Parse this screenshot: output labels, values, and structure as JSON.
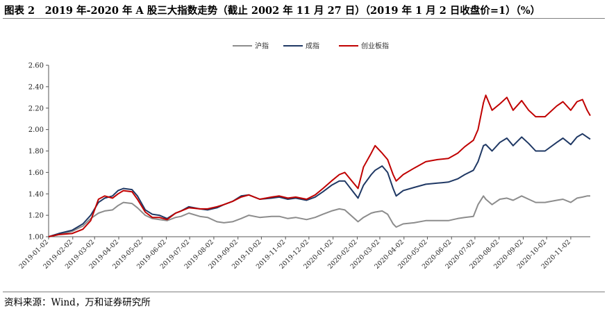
{
  "header": {
    "title": "图表 2　2019 年-2020 年 A 股三大指数走势（截止 2002 年 11 月 27 日）（2019 年 1 月 2 日收盘价=1）（%）"
  },
  "footer": {
    "source": "资料来源：Wind，万和证券研究所"
  },
  "chart_data": {
    "type": "line",
    "title": "图表 2　2019 年-2020 年 A 股三大指数走势（截止 2002 年 11 月 27 日）（2019 年 1 月 2 日收盘价=1）（%）",
    "legend_position": "top-center",
    "grid": false,
    "ylim": [
      1.0,
      2.6
    ],
    "y_ticks": [
      "1.00",
      "1.20",
      "1.40",
      "1.60",
      "1.80",
      "2.00",
      "2.20",
      "2.40",
      "2.60"
    ],
    "x_ticks": [
      "2019-01-02",
      "2019-02-02",
      "2019-03-02",
      "2019-04-02",
      "2019-05-02",
      "2019-06-02",
      "2019-07-02",
      "2019-08-02",
      "2019-09-02",
      "2019-10-02",
      "2019-11-02",
      "2019-12-02",
      "2020-01-02",
      "2020-02-02",
      "2020-03-02",
      "2020-04-02",
      "2020-05-02",
      "2020-06-02",
      "2020-07-02",
      "2020-08-02",
      "2020-09-02",
      "2020-10-02",
      "2020-11-02"
    ],
    "x": [
      "2019-01-02",
      "2019-01-15",
      "2019-02-01",
      "2019-02-15",
      "2019-02-25",
      "2019-03-07",
      "2019-03-15",
      "2019-03-25",
      "2019-04-01",
      "2019-04-08",
      "2019-04-19",
      "2019-04-26",
      "2019-05-06",
      "2019-05-15",
      "2019-05-24",
      "2019-06-03",
      "2019-06-14",
      "2019-06-21",
      "2019-07-01",
      "2019-07-15",
      "2019-07-25",
      "2019-08-06",
      "2019-08-15",
      "2019-08-26",
      "2019-09-06",
      "2019-09-16",
      "2019-09-30",
      "2019-10-15",
      "2019-10-25",
      "2019-11-05",
      "2019-11-15",
      "2019-11-29",
      "2019-12-10",
      "2019-12-20",
      "2019-12-31",
      "2020-01-10",
      "2020-01-17",
      "2020-02-03",
      "2020-02-10",
      "2020-02-20",
      "2020-02-25",
      "2020-03-05",
      "2020-03-12",
      "2020-03-19",
      "2020-03-23",
      "2020-04-01",
      "2020-04-15",
      "2020-04-30",
      "2020-05-15",
      "2020-05-29",
      "2020-06-10",
      "2020-06-19",
      "2020-06-30",
      "2020-07-06",
      "2020-07-13",
      "2020-07-16",
      "2020-07-24",
      "2020-08-03",
      "2020-08-12",
      "2020-08-20",
      "2020-08-31",
      "2020-09-09",
      "2020-09-18",
      "2020-09-30",
      "2020-10-15",
      "2020-10-23",
      "2020-11-02",
      "2020-11-10",
      "2020-11-17",
      "2020-11-23",
      "2020-11-27"
    ],
    "series": [
      {
        "name": "沪指",
        "color": "#8c8c8c",
        "values": [
          1.0,
          1.02,
          1.05,
          1.1,
          1.17,
          1.22,
          1.24,
          1.25,
          1.29,
          1.32,
          1.31,
          1.27,
          1.2,
          1.17,
          1.16,
          1.15,
          1.18,
          1.19,
          1.22,
          1.19,
          1.18,
          1.14,
          1.13,
          1.14,
          1.17,
          1.2,
          1.18,
          1.19,
          1.19,
          1.17,
          1.18,
          1.16,
          1.18,
          1.21,
          1.24,
          1.26,
          1.25,
          1.14,
          1.18,
          1.22,
          1.23,
          1.24,
          1.21,
          1.12,
          1.09,
          1.12,
          1.13,
          1.15,
          1.15,
          1.15,
          1.17,
          1.18,
          1.19,
          1.3,
          1.38,
          1.35,
          1.3,
          1.35,
          1.36,
          1.34,
          1.38,
          1.35,
          1.32,
          1.32,
          1.34,
          1.35,
          1.32,
          1.36,
          1.37,
          1.38,
          1.38
        ]
      },
      {
        "name": "成指",
        "color": "#1f3864",
        "values": [
          1.0,
          1.03,
          1.06,
          1.12,
          1.2,
          1.32,
          1.36,
          1.38,
          1.43,
          1.45,
          1.44,
          1.38,
          1.25,
          1.21,
          1.2,
          1.17,
          1.22,
          1.24,
          1.28,
          1.26,
          1.25,
          1.27,
          1.3,
          1.33,
          1.38,
          1.39,
          1.35,
          1.36,
          1.37,
          1.35,
          1.36,
          1.34,
          1.37,
          1.42,
          1.48,
          1.52,
          1.52,
          1.36,
          1.48,
          1.58,
          1.62,
          1.66,
          1.6,
          1.45,
          1.38,
          1.43,
          1.46,
          1.49,
          1.5,
          1.51,
          1.54,
          1.58,
          1.62,
          1.7,
          1.85,
          1.86,
          1.8,
          1.88,
          1.92,
          1.85,
          1.93,
          1.87,
          1.8,
          1.8,
          1.88,
          1.92,
          1.86,
          1.93,
          1.96,
          1.93,
          1.91
        ]
      },
      {
        "name": "创业板指",
        "color": "#c00000",
        "values": [
          1.0,
          1.02,
          1.03,
          1.07,
          1.15,
          1.35,
          1.38,
          1.36,
          1.4,
          1.43,
          1.42,
          1.35,
          1.23,
          1.18,
          1.18,
          1.16,
          1.22,
          1.24,
          1.27,
          1.26,
          1.26,
          1.28,
          1.3,
          1.33,
          1.37,
          1.39,
          1.35,
          1.37,
          1.38,
          1.36,
          1.37,
          1.35,
          1.39,
          1.45,
          1.52,
          1.58,
          1.6,
          1.45,
          1.65,
          1.78,
          1.85,
          1.78,
          1.72,
          1.58,
          1.52,
          1.58,
          1.64,
          1.7,
          1.72,
          1.73,
          1.78,
          1.84,
          1.9,
          2.0,
          2.25,
          2.32,
          2.18,
          2.24,
          2.3,
          2.18,
          2.27,
          2.18,
          2.12,
          2.12,
          2.22,
          2.26,
          2.18,
          2.26,
          2.28,
          2.18,
          2.13
        ]
      }
    ]
  }
}
